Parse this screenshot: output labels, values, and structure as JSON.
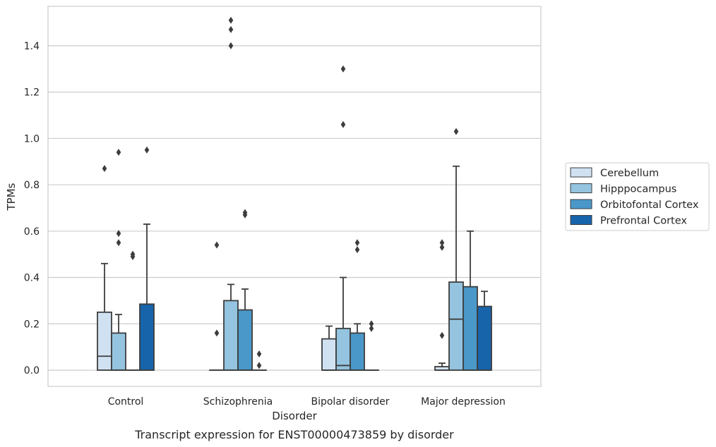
{
  "chart_data": {
    "type": "box",
    "caption": "Transcript expression for ENST00000473859 by disorder",
    "xlabel": "Disorder",
    "ylabel": "TPMs",
    "ylim": [
      -0.07,
      1.57
    ],
    "yticks": [
      "0.0",
      "0.2",
      "0.4",
      "0.6",
      "0.8",
      "1.0",
      "1.2",
      "1.4"
    ],
    "grid": "horizontal",
    "legend_position": "right",
    "categories": [
      "Control",
      "Schizophrenia",
      "Bipolar disorder",
      "Major depression"
    ],
    "series": [
      {
        "name": "Cerebellum",
        "color": "#d0e1f2",
        "boxes": [
          {
            "q1": 0.0,
            "median": 0.06,
            "q3": 0.25,
            "whisker_low": 0.0,
            "whisker_high": 0.46,
            "outliers": [
              0.87
            ]
          },
          {
            "q1": 0.0,
            "median": 0.0,
            "q3": 0.0,
            "whisker_low": 0.0,
            "whisker_high": 0.0,
            "outliers": [
              0.16,
              0.54
            ]
          },
          {
            "q1": 0.0,
            "median": 0.0,
            "q3": 0.135,
            "whisker_low": 0.0,
            "whisker_high": 0.19,
            "outliers": []
          },
          {
            "q1": 0.0,
            "median": 0.0,
            "q3": 0.015,
            "whisker_low": 0.0,
            "whisker_high": 0.03,
            "outliers": [
              0.15,
              0.53,
              0.55
            ]
          }
        ]
      },
      {
        "name": "Hipppocampus",
        "color": "#94c4df",
        "boxes": [
          {
            "q1": 0.0,
            "median": 0.0,
            "q3": 0.16,
            "whisker_low": 0.0,
            "whisker_high": 0.24,
            "outliers": [
              0.55,
              0.59,
              0.94
            ]
          },
          {
            "q1": 0.0,
            "median": 0.0,
            "q3": 0.3,
            "whisker_low": 0.0,
            "whisker_high": 0.37,
            "outliers": [
              1.4,
              1.47,
              1.51
            ]
          },
          {
            "q1": 0.0,
            "median": 0.02,
            "q3": 0.18,
            "whisker_low": 0.0,
            "whisker_high": 0.4,
            "outliers": [
              1.06,
              1.3
            ]
          },
          {
            "q1": 0.0,
            "median": 0.22,
            "q3": 0.38,
            "whisker_low": 0.0,
            "whisker_high": 0.88,
            "outliers": [
              1.03
            ]
          }
        ]
      },
      {
        "name": "Orbitofontal Cortex",
        "color": "#4a98c9",
        "boxes": [
          {
            "q1": 0.0,
            "median": 0.0,
            "q3": 0.0,
            "whisker_low": 0.0,
            "whisker_high": 0.0,
            "outliers": [
              0.49,
              0.5
            ]
          },
          {
            "q1": 0.0,
            "median": 0.0,
            "q3": 0.26,
            "whisker_low": 0.0,
            "whisker_high": 0.35,
            "outliers": [
              0.67,
              0.68
            ]
          },
          {
            "q1": 0.0,
            "median": 0.0,
            "q3": 0.16,
            "whisker_low": 0.0,
            "whisker_high": 0.2,
            "outliers": [
              0.52,
              0.55
            ]
          },
          {
            "q1": 0.0,
            "median": 0.0,
            "q3": 0.36,
            "whisker_low": 0.0,
            "whisker_high": 0.6,
            "outliers": []
          }
        ]
      },
      {
        "name": "Prefrontal Cortex",
        "color": "#1764ab",
        "boxes": [
          {
            "q1": 0.0,
            "median": 0.0,
            "q3": 0.285,
            "whisker_low": 0.0,
            "whisker_high": 0.63,
            "outliers": [
              0.95
            ]
          },
          {
            "q1": 0.0,
            "median": 0.0,
            "q3": 0.0,
            "whisker_low": 0.0,
            "whisker_high": 0.0,
            "outliers": [
              0.02,
              0.07
            ]
          },
          {
            "q1": 0.0,
            "median": 0.0,
            "q3": 0.0,
            "whisker_low": 0.0,
            "whisker_high": 0.0,
            "outliers": [
              0.18,
              0.2
            ]
          },
          {
            "q1": 0.0,
            "median": 0.0,
            "q3": 0.275,
            "whisker_low": 0.0,
            "whisker_high": 0.34,
            "outliers": []
          }
        ]
      }
    ]
  }
}
